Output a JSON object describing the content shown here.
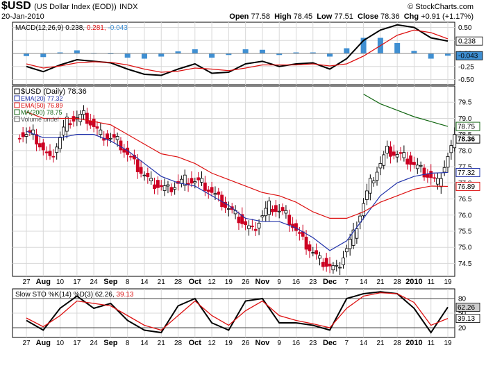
{
  "header": {
    "symbol": "$USD",
    "name": "(US Dollar Index (EOD))",
    "exchange": "INDX",
    "date": "20-Jan-2010",
    "copyright": "© StockCharts.com",
    "open_label": "Open",
    "open": "77.58",
    "high_label": "High",
    "high": "78.45",
    "low_label": "Low",
    "low": "77.51",
    "close_label": "Close",
    "close": "78.36",
    "chg_label": "Chg",
    "chg": "+0.91 (+1.17%)"
  },
  "colors": {
    "up": "#000000",
    "down": "#cc0022",
    "ema20": "#2233aa",
    "ema50": "#dd1111",
    "ma200": "#116611",
    "hist": "#3f8fd2",
    "frame": "#000000",
    "grid": "#d8d8d8"
  },
  "chart_data": [
    {
      "type": "line",
      "title": "MACD(12,26,9) 0.238, 0.281, -0.043",
      "legend": {
        "label": "MACD(12,26,9)",
        "macd": "0.238",
        "signal": "0.281",
        "hist": "-0.043"
      },
      "y_ticks": [
        "0.50",
        "0.25",
        "0.00",
        "-0.25",
        "-0.50"
      ],
      "right_labels": [
        "0.238",
        "-0.043"
      ],
      "ylim": [
        -0.6,
        0.6
      ],
      "x": [
        "2009-07-27",
        "2009-08-03",
        "2009-08-10",
        "2009-08-17",
        "2009-08-24",
        "2009-09-01",
        "2009-09-08",
        "2009-09-14",
        "2009-09-21",
        "2009-09-28",
        "2009-10-05",
        "2009-10-12",
        "2009-10-19",
        "2009-10-26",
        "2009-11-02",
        "2009-11-09",
        "2009-11-16",
        "2009-11-23",
        "2009-11-30",
        "2009-12-07",
        "2009-12-14",
        "2009-12-21",
        "2009-12-28",
        "2010-01-04",
        "2010-01-11",
        "2010-01-20"
      ],
      "series": [
        {
          "values": [
            -0.25,
            -0.35,
            -0.22,
            -0.12,
            -0.15,
            -0.18,
            -0.3,
            -0.4,
            -0.42,
            -0.3,
            -0.2,
            -0.38,
            -0.36,
            -0.2,
            -0.15,
            -0.25,
            -0.2,
            -0.18,
            -0.3,
            -0.1,
            0.25,
            0.45,
            0.55,
            0.5,
            0.3,
            0.238
          ]
        },
        {
          "values": [
            -0.2,
            -0.28,
            -0.24,
            -0.18,
            -0.16,
            -0.17,
            -0.22,
            -0.3,
            -0.36,
            -0.34,
            -0.28,
            -0.3,
            -0.33,
            -0.28,
            -0.22,
            -0.22,
            -0.22,
            -0.2,
            -0.24,
            -0.2,
            -0.05,
            0.15,
            0.35,
            0.45,
            0.4,
            0.281
          ]
        },
        {
          "values": [
            -0.05,
            -0.07,
            0.02,
            0.06,
            0.01,
            -0.01,
            -0.08,
            -0.1,
            -0.06,
            0.04,
            0.08,
            -0.08,
            -0.03,
            0.08,
            0.07,
            -0.03,
            0.02,
            0.02,
            -0.06,
            0.1,
            0.3,
            0.3,
            0.2,
            0.05,
            -0.1,
            -0.043
          ]
        }
      ]
    },
    {
      "type": "line",
      "title": "$USD (Daily) 78.36",
      "legend": [
        {
          "label": "$USD (Daily) 78.36"
        },
        {
          "label": "EMA(20) 77.32"
        },
        {
          "label": "EMA(50) 76.89"
        },
        {
          "label": "MA(200) 78.75"
        },
        {
          "label": "Volume undef"
        }
      ],
      "y_ticks": [
        "79.5",
        "79.0",
        "78.5",
        "78.0",
        "77.5",
        "77.0",
        "76.5",
        "76.0",
        "75.5",
        "75.0",
        "74.5"
      ],
      "right_labels": [
        "78.75",
        "78.36",
        "77.32",
        "76.89"
      ],
      "ylim": [
        74.1,
        80.0
      ],
      "x": [
        "2009-07-27",
        "2009-08-03",
        "2009-08-10",
        "2009-08-17",
        "2009-08-24",
        "2009-09-01",
        "2009-09-08",
        "2009-09-14",
        "2009-09-21",
        "2009-09-28",
        "2009-10-05",
        "2009-10-12",
        "2009-10-19",
        "2009-10-26",
        "2009-11-02",
        "2009-11-09",
        "2009-11-16",
        "2009-11-23",
        "2009-11-30",
        "2009-12-07",
        "2009-12-14",
        "2009-12-21",
        "2009-12-28",
        "2010-01-04",
        "2010-01-11",
        "2010-01-20"
      ],
      "series": [
        {
          "values": [
            78.5,
            77.7,
            78.9,
            79.1,
            78.5,
            78.3,
            77.6,
            77.0,
            76.8,
            77.1,
            77.0,
            76.5,
            76.0,
            75.5,
            76.3,
            76.0,
            75.2,
            74.6,
            74.3,
            75.4,
            77.0,
            78.0,
            77.8,
            77.4,
            77.0,
            78.36
          ]
        },
        {
          "values": [
            78.6,
            78.4,
            78.4,
            78.5,
            78.5,
            78.3,
            78.0,
            77.6,
            77.2,
            77.0,
            76.9,
            76.6,
            76.3,
            75.9,
            75.8,
            75.8,
            75.6,
            75.3,
            74.9,
            75.2,
            75.9,
            76.6,
            77.0,
            77.2,
            77.3,
            77.32
          ]
        },
        {
          "values": [
            79.2,
            79.0,
            79.0,
            79.0,
            78.9,
            78.8,
            78.5,
            78.2,
            77.9,
            77.8,
            77.6,
            77.3,
            77.1,
            76.9,
            76.7,
            76.6,
            76.4,
            76.1,
            75.9,
            75.9,
            76.1,
            76.4,
            76.6,
            76.8,
            76.9,
            76.89
          ]
        },
        {
          "values": [
            null,
            null,
            null,
            null,
            null,
            null,
            null,
            null,
            null,
            null,
            null,
            null,
            null,
            null,
            null,
            null,
            null,
            null,
            null,
            null,
            79.75,
            79.45,
            79.25,
            79.05,
            78.9,
            78.75
          ]
        }
      ]
    },
    {
      "type": "line",
      "title": "Slow STO %K(14) %D(3) 62.26, 39.13",
      "legend": {
        "label": "Slow STO %K(14) %D(3)",
        "k": "62.26",
        "d": "39.13"
      },
      "y_ticks": [
        "80",
        "50",
        "20"
      ],
      "right_labels": [
        "62.26",
        "39.13"
      ],
      "ylim": [
        0,
        100
      ],
      "x": [
        "2009-07-27",
        "2009-08-03",
        "2009-08-10",
        "2009-08-17",
        "2009-08-24",
        "2009-09-01",
        "2009-09-08",
        "2009-09-14",
        "2009-09-21",
        "2009-09-28",
        "2009-10-05",
        "2009-10-12",
        "2009-10-19",
        "2009-10-26",
        "2009-11-02",
        "2009-11-09",
        "2009-11-16",
        "2009-11-23",
        "2009-11-30",
        "2009-12-07",
        "2009-12-14",
        "2009-12-21",
        "2009-12-28",
        "2010-01-04",
        "2010-01-11",
        "2010-01-20"
      ],
      "series": [
        {
          "values": [
            35,
            15,
            60,
            85,
            60,
            70,
            35,
            15,
            10,
            65,
            80,
            30,
            15,
            75,
            80,
            30,
            30,
            25,
            15,
            80,
            90,
            94,
            90,
            60,
            10,
            62.26
          ]
        },
        {
          "values": [
            40,
            22,
            45,
            75,
            70,
            65,
            45,
            25,
            15,
            45,
            75,
            45,
            25,
            55,
            75,
            45,
            35,
            28,
            20,
            60,
            85,
            92,
            90,
            72,
            25,
            39.13
          ]
        }
      ]
    }
  ],
  "x_axis_labels": [
    "27",
    "Aug",
    "10",
    "17",
    "24",
    "Sep",
    "8",
    "14",
    "21",
    "28",
    "Oct",
    "12",
    "19",
    "26",
    "Nov",
    "9",
    "16",
    "23",
    "Dec",
    "7",
    "14",
    "21",
    "28",
    "2010",
    "11",
    "19"
  ],
  "x_axis_bold": [
    "Aug",
    "Sep",
    "Oct",
    "Nov",
    "Dec",
    "2010"
  ]
}
